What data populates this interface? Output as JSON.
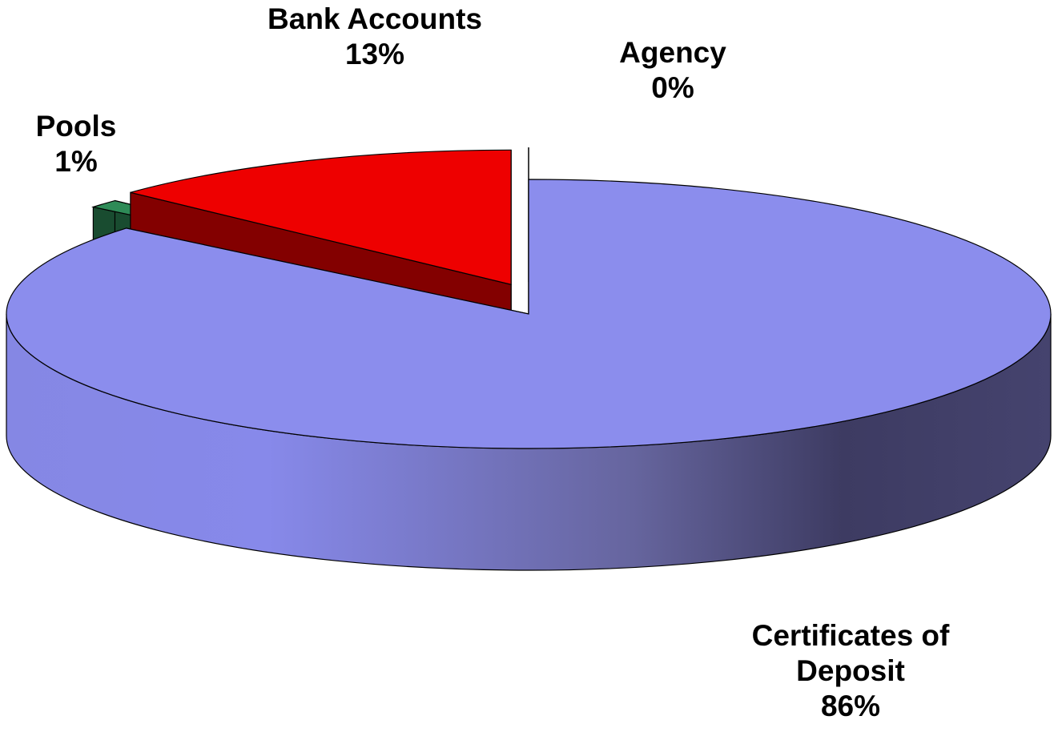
{
  "chart_data": {
    "type": "pie3d",
    "categories": [
      "Certificates of Deposit",
      "Pools",
      "Bank Accounts",
      "Agency"
    ],
    "values": [
      86,
      1,
      13,
      0
    ],
    "value_labels": [
      "86%",
      "1%",
      "13%",
      "0%"
    ],
    "colors": [
      "#8b8ded",
      "#2e8b57",
      "#ee0000",
      "#cccc00"
    ]
  }
}
